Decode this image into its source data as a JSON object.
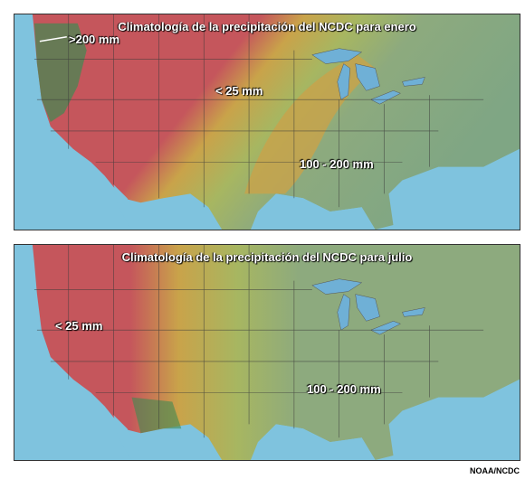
{
  "panels": [
    {
      "title": "Climatología de la precipitación del NCDC para enero",
      "labels": [
        ">200 mm",
        "< 25 mm",
        "100 - 200 mm"
      ]
    },
    {
      "title": "Climatología de la precipitación del NCDC para julio",
      "labels": [
        "< 25 mm",
        "100 - 200 mm"
      ]
    }
  ],
  "credit": "NOAA/NCDC",
  "colors": {
    "ocean": "#7fc3de",
    "dry": "#c5565c",
    "moderate": "#c9a34a",
    "semi": "#a7b661",
    "wet": "#8daa7e",
    "lakes": "#6fb0d6",
    "mountains": "#3f8a52",
    "boundaries": "#3a3a3a"
  },
  "icons": [
    "pointer-line-icon"
  ]
}
